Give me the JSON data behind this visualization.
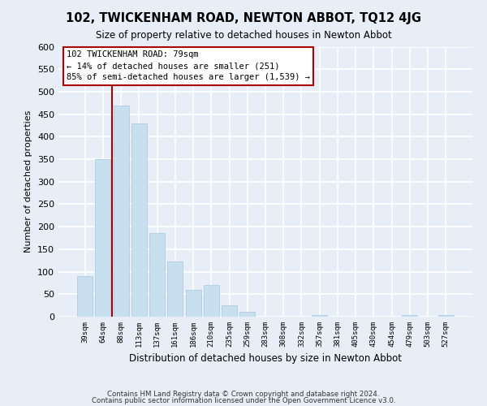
{
  "title": "102, TWICKENHAM ROAD, NEWTON ABBOT, TQ12 4JG",
  "subtitle": "Size of property relative to detached houses in Newton Abbot",
  "xlabel": "Distribution of detached houses by size in Newton Abbot",
  "ylabel": "Number of detached properties",
  "bar_labels": [
    "39sqm",
    "64sqm",
    "88sqm",
    "113sqm",
    "137sqm",
    "161sqm",
    "186sqm",
    "210sqm",
    "235sqm",
    "259sqm",
    "283sqm",
    "308sqm",
    "332sqm",
    "357sqm",
    "381sqm",
    "405sqm",
    "430sqm",
    "454sqm",
    "479sqm",
    "503sqm",
    "527sqm"
  ],
  "bar_values": [
    90,
    350,
    470,
    430,
    185,
    122,
    60,
    70,
    25,
    10,
    0,
    0,
    0,
    3,
    0,
    0,
    0,
    0,
    3,
    0,
    3
  ],
  "bar_color": "#c8dff0",
  "bar_edge_color": "#b0cce0",
  "vline_x": 1.5,
  "vline_color": "#aa0000",
  "ylim": [
    0,
    600
  ],
  "yticks": [
    0,
    50,
    100,
    150,
    200,
    250,
    300,
    350,
    400,
    450,
    500,
    550,
    600
  ],
  "annotation_line1": "102 TWICKENHAM ROAD: 79sqm",
  "annotation_line2": "← 14% of detached houses are smaller (251)",
  "annotation_line3": "85% of semi-detached houses are larger (1,539) →",
  "annotation_box_color": "#ffffff",
  "annotation_box_edge": "#aa0000",
  "footer_line1": "Contains HM Land Registry data © Crown copyright and database right 2024.",
  "footer_line2": "Contains public sector information licensed under the Open Government Licence v3.0.",
  "bg_color": "#e8eef8",
  "plot_bg_color": "#e8eef8",
  "title_fontsize": 10.5,
  "subtitle_fontsize": 8.5
}
